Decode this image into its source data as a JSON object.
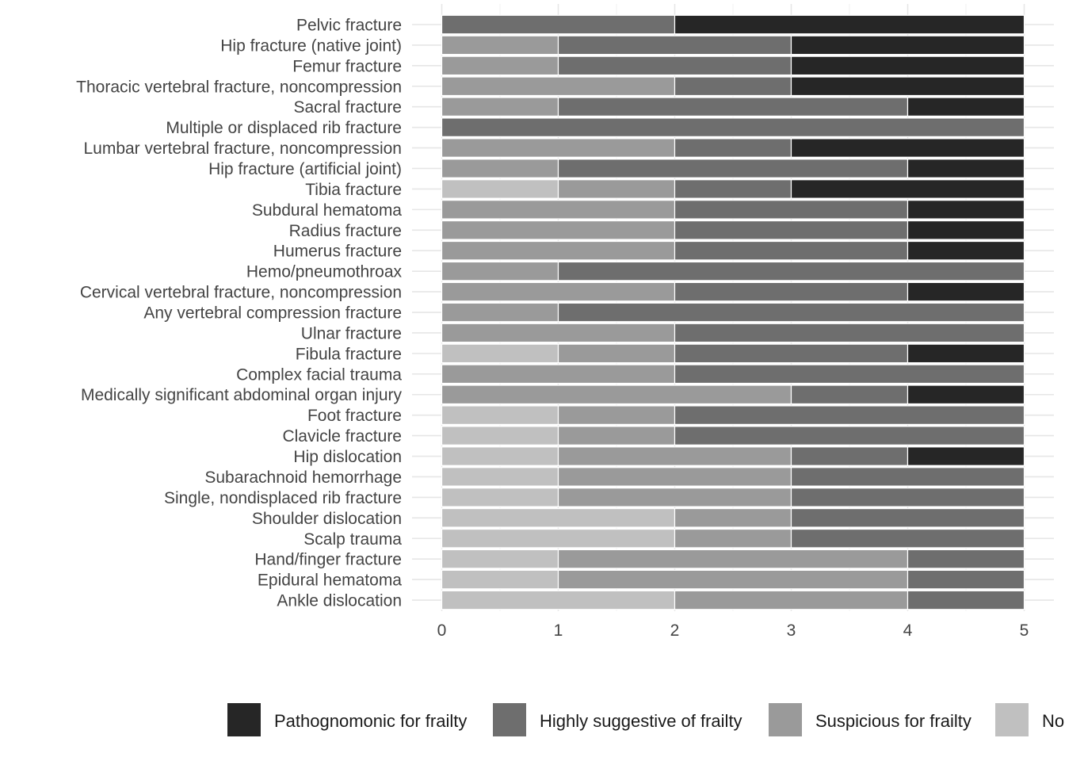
{
  "chart_data": {
    "type": "bar",
    "orientation": "horizontal",
    "stacked": true,
    "title": "",
    "xlabel": "",
    "ylabel": "",
    "xlim": [
      0,
      5
    ],
    "xticks": [
      "0",
      "1",
      "2",
      "3",
      "4",
      "5"
    ],
    "grid": true,
    "legend_position": "bottom",
    "categories": [
      "Pelvic fracture",
      "Hip fracture (native joint)",
      "Femur fracture",
      "Thoracic vertebral fracture, noncompression",
      "Sacral fracture",
      "Multiple or displaced rib fracture",
      "Lumbar vertebral fracture, noncompression",
      "Hip fracture (artificial joint)",
      "Tibia fracture",
      "Subdural hematoma",
      "Radius fracture",
      "Humerus fracture",
      "Hemo/pneumothroax",
      "Cervical vertebral fracture, noncompression",
      "Any vertebral compression fracture",
      "Ulnar fracture",
      "Fibula fracture",
      "Complex facial trauma",
      "Medically significant abdominal organ injury",
      "Foot fracture",
      "Clavicle fracture",
      "Hip dislocation",
      "Subarachnoid hemorrhage",
      "Single, nondisplaced rib fracture",
      "Shoulder dislocation",
      "Scalp trauma",
      "Hand/finger fracture",
      "Epidural hematoma",
      "Ankle dislocation"
    ],
    "stack_order": [
      "No",
      "Suspicious for frailty",
      "Highly suggestive of frailty",
      "Pathognomonic for frailty"
    ],
    "series": [
      {
        "name": "Pathognomonic for frailty",
        "color": "#262626",
        "values": [
          3,
          2,
          2,
          2,
          1,
          0,
          2,
          1,
          2,
          1,
          1,
          1,
          0,
          1,
          0,
          0,
          1,
          0,
          1,
          0,
          0,
          1,
          0,
          0,
          0,
          0,
          0,
          0,
          0
        ]
      },
      {
        "name": "Highly suggestive of frailty",
        "color": "#6e6e6e",
        "values": [
          2,
          2,
          2,
          1,
          3,
          5,
          1,
          3,
          1,
          2,
          2,
          2,
          4,
          2,
          4,
          3,
          2,
          3,
          1,
          3,
          3,
          1,
          2,
          2,
          2,
          2,
          1,
          1,
          1
        ]
      },
      {
        "name": "Suspicious for frailty",
        "color": "#9a9a9a",
        "values": [
          0,
          1,
          1,
          2,
          1,
          0,
          2,
          1,
          1,
          2,
          2,
          2,
          1,
          2,
          1,
          2,
          1,
          2,
          3,
          1,
          1,
          2,
          2,
          2,
          1,
          1,
          3,
          3,
          2
        ]
      },
      {
        "name": "No",
        "color": "#c0c0c0",
        "values": [
          0,
          0,
          0,
          0,
          0,
          0,
          0,
          0,
          1,
          0,
          0,
          0,
          0,
          0,
          0,
          0,
          1,
          0,
          0,
          1,
          1,
          1,
          1,
          1,
          2,
          2,
          1,
          1,
          2
        ]
      }
    ]
  }
}
